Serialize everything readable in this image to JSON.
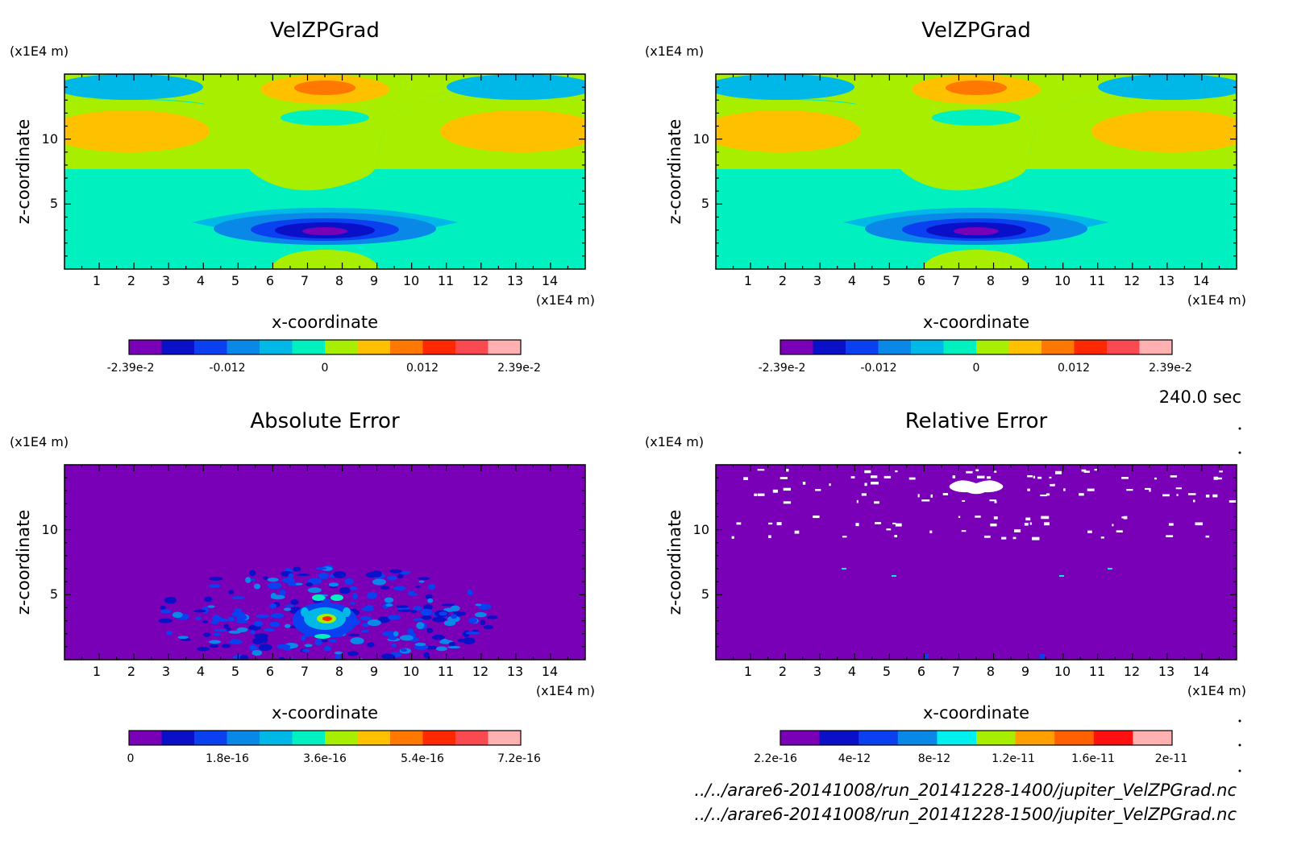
{
  "colors": {
    "velocity_levels": [
      "#7a00b8",
      "#0a10c8",
      "#0a40f0",
      "#0a88e8",
      "#00b8e8",
      "#00f0c0",
      "#a8ee00",
      "#ffc000",
      "#ff7800",
      "#ff2800",
      "#f84a50",
      "#ffb0b0"
    ],
    "abs_levels": [
      "#7a00b8",
      "#0a10c8",
      "#0a40f0",
      "#0a88e8",
      "#00b8e8",
      "#00f0c0",
      "#a8ee00",
      "#ffc000",
      "#ff7800",
      "#ff2800",
      "#f84a50",
      "#ffb0b0"
    ],
    "rel_levels": [
      "#7a00b8",
      "#0a10c8",
      "#0a40f0",
      "#0a88e8",
      "#00f0f0",
      "#a8ee00",
      "#ffa000",
      "#ff6000",
      "#ff1010",
      "#ffb0b0"
    ]
  },
  "time_label": "240.0 sec",
  "files": [
    "../../arare6-20141008/run_20141228-1400/jupiter_VelZPGrad.nc",
    "../../arare6-20141008/run_20141228-1500/jupiter_VelZPGrad.nc"
  ],
  "chart_data": [
    {
      "type": "heatmap",
      "title": "VelZPGrad",
      "xlabel": "x-coordinate",
      "ylabel": "z-coordinate",
      "x_unit": "(x1E4 m)",
      "y_unit": "(x1E4 m)",
      "xlim": [
        0,
        15
      ],
      "ylim": [
        0,
        15
      ],
      "x_ticks": [
        "1",
        "2",
        "3",
        "4",
        "5",
        "6",
        "7",
        "8",
        "9",
        "10",
        "11",
        "12",
        "13",
        "14"
      ],
      "y_ticks": [
        "5",
        "10"
      ],
      "colorbar": {
        "range": [
          -0.0239,
          0.0239
        ],
        "labels": [
          "-2.39e-2",
          "-0.012",
          "0",
          "0.012",
          "2.39e-2"
        ]
      }
    },
    {
      "type": "heatmap",
      "title": "VelZPGrad",
      "xlabel": "x-coordinate",
      "ylabel": "z-coordinate",
      "x_unit": "(x1E4 m)",
      "y_unit": "(x1E4 m)",
      "xlim": [
        0,
        15
      ],
      "ylim": [
        0,
        15
      ],
      "x_ticks": [
        "1",
        "2",
        "3",
        "4",
        "5",
        "6",
        "7",
        "8",
        "9",
        "10",
        "11",
        "12",
        "13",
        "14"
      ],
      "y_ticks": [
        "5",
        "10"
      ],
      "colorbar": {
        "range": [
          -0.0239,
          0.0239
        ],
        "labels": [
          "-2.39e-2",
          "-0.012",
          "0",
          "0.012",
          "2.39e-2"
        ]
      }
    },
    {
      "type": "heatmap",
      "title": "Absolute Error",
      "xlabel": "x-coordinate",
      "ylabel": "z-coordinate",
      "x_unit": "(x1E4 m)",
      "y_unit": "(x1E4 m)",
      "xlim": [
        0,
        15
      ],
      "ylim": [
        0,
        15
      ],
      "x_ticks": [
        "1",
        "2",
        "3",
        "4",
        "5",
        "6",
        "7",
        "8",
        "9",
        "10",
        "11",
        "12",
        "13",
        "14"
      ],
      "y_ticks": [
        "5",
        "10"
      ],
      "colorbar": {
        "range": [
          0,
          7.2e-16
        ],
        "labels": [
          "0",
          "1.8e-16",
          "3.6e-16",
          "5.4e-16",
          "7.2e-16"
        ]
      }
    },
    {
      "type": "heatmap",
      "title": "Relative Error",
      "xlabel": "x-coordinate",
      "ylabel": "z-coordinate",
      "x_unit": "(x1E4 m)",
      "y_unit": "(x1E4 m)",
      "xlim": [
        0,
        15
      ],
      "ylim": [
        0,
        15
      ],
      "x_ticks": [
        "1",
        "2",
        "3",
        "4",
        "5",
        "6",
        "7",
        "8",
        "9",
        "10",
        "11",
        "12",
        "13",
        "14"
      ],
      "y_ticks": [
        "5",
        "10"
      ],
      "colorbar": {
        "range": [
          2.2e-16,
          2.2e-11
        ],
        "labels": [
          "2.2e-16",
          "4e-12",
          "8e-12",
          "1.2e-11",
          "1.6e-11",
          "2e-11"
        ]
      }
    }
  ]
}
